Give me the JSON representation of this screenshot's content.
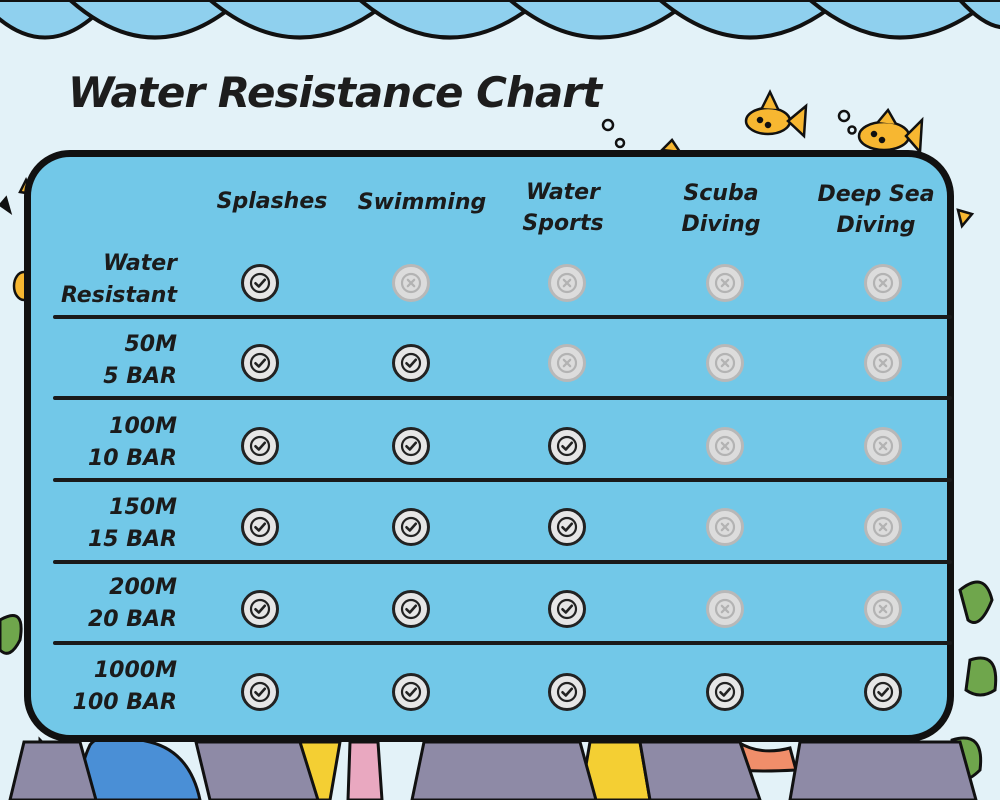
{
  "chart_data": {
    "type": "table",
    "title": "Water Resistance Chart",
    "columns": [
      "Splashes",
      "Swimming",
      "Water Sports",
      "Scuba Diving",
      "Deep Sea Diving"
    ],
    "rows": [
      {
        "label": "Water Resistant",
        "values": [
          true,
          false,
          false,
          false,
          false
        ]
      },
      {
        "label": "50M 5 BAR",
        "values": [
          true,
          true,
          false,
          false,
          false
        ]
      },
      {
        "label": "100M 10 BAR",
        "values": [
          true,
          true,
          true,
          false,
          false
        ]
      },
      {
        "label": "150M 15 BAR",
        "values": [
          true,
          true,
          true,
          false,
          false
        ]
      },
      {
        "label": "200M 20 BAR",
        "values": [
          true,
          true,
          true,
          false,
          false
        ]
      },
      {
        "label": "1000M 100 BAR",
        "values": [
          true,
          true,
          true,
          true,
          true
        ]
      }
    ]
  },
  "table": {
    "column_headers": [
      "Splashes",
      "Swimming",
      "Water\nSports",
      "Scuba\nDiving",
      "Deep Sea\nDiving"
    ],
    "row_labels": [
      "Water\nResistant",
      "50M\n5 BAR",
      "100M\n10 BAR",
      "150M\n15 BAR",
      "200M\n20 BAR",
      "1000M\n100 BAR"
    ]
  },
  "icons": {
    "yes": "check-circle-icon",
    "no": "x-circle-icon"
  },
  "colors": {
    "sky": "#e3f2f8",
    "waves": "#8fd0ee",
    "board": "#72c8e8",
    "outline": "#111111",
    "fish": "#f7b731",
    "rock": "#8e8aa6",
    "seaweed": "#6fa64c",
    "coral_blue": "#4a8fd6",
    "coral_yellow": "#f4cf33",
    "coral_pink": "#e9a8c0"
  }
}
